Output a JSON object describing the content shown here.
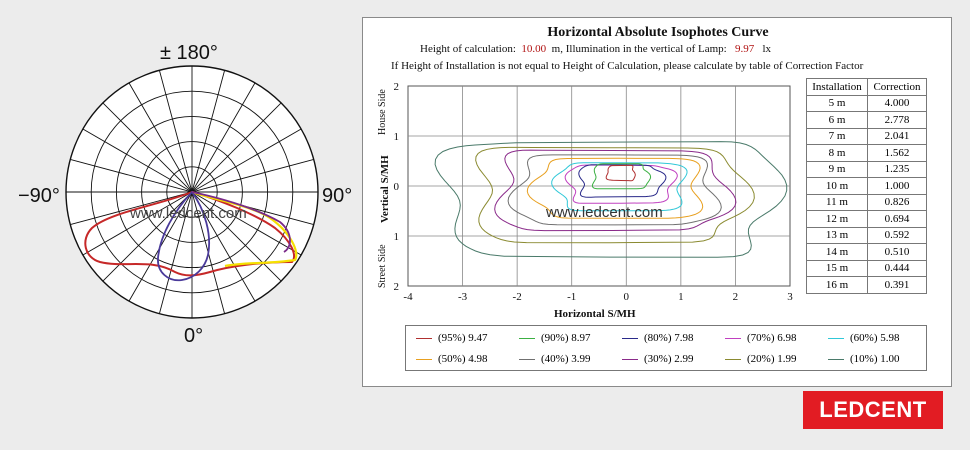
{
  "polar": {
    "top_label": "± 180°",
    "left_label": "−90°",
    "right_label": "90°",
    "bottom_label": "0°",
    "watermark": "www.ledcent.com",
    "curve_colors": [
      "#c62828",
      "#f5e000",
      "#4a3a9a",
      "#7a2a8a"
    ]
  },
  "isophote": {
    "title": "Horizontal Absolute Isophotes Curve",
    "calc_label": "Height of calculation:",
    "calc_value": "10.00",
    "calc_unit": "m, Illumination in the vertical of Lamp:",
    "lamp_value": "9.97",
    "lamp_unit": "lx",
    "note": "If Height of Installation is not equal to Height of Calculation, please calculate by table of Correction Factor",
    "y_axis_label": "Vertical S/MH",
    "house_side": "House Side",
    "street_side": "Street Side",
    "x_axis_label": "Horizontal S/MH",
    "watermark": "www.ledcent.com",
    "x_ticks": [
      "-4",
      "-3",
      "-2",
      "-1",
      "0",
      "1",
      "2",
      "3"
    ],
    "y_ticks": [
      "2",
      "1",
      "0",
      "1",
      "2"
    ]
  },
  "correction_table": {
    "headers": [
      "Installation",
      "Correction"
    ],
    "rows": [
      [
        "5 m",
        "4.000"
      ],
      [
        "6 m",
        "2.778"
      ],
      [
        "7 m",
        "2.041"
      ],
      [
        "8 m",
        "1.562"
      ],
      [
        "9 m",
        "1.235"
      ],
      [
        "10 m",
        "1.000"
      ],
      [
        "11 m",
        "0.826"
      ],
      [
        "12 m",
        "0.694"
      ],
      [
        "13 m",
        "0.592"
      ],
      [
        "14 m",
        "0.510"
      ],
      [
        "15 m",
        "0.444"
      ],
      [
        "16 m",
        "0.391"
      ]
    ]
  },
  "legend": [
    {
      "label": "(95%) 9.47",
      "color": "#b03030"
    },
    {
      "label": "(90%) 8.97",
      "color": "#3cb043"
    },
    {
      "label": "(80%) 7.98",
      "color": "#2a2a8a"
    },
    {
      "label": "(70%) 6.98",
      "color": "#c040c0"
    },
    {
      "label": "(60%) 5.98",
      "color": "#30c8d8"
    },
    {
      "label": "(50%) 4.98",
      "color": "#e8a020"
    },
    {
      "label": "(40%) 3.99",
      "color": "#707070"
    },
    {
      "label": "(30%) 2.99",
      "color": "#8a2a8a"
    },
    {
      "label": "(20%) 1.99",
      "color": "#8a8a30"
    },
    {
      "label": "(10%) 1.00",
      "color": "#4a7a6a"
    }
  ],
  "chart_data": {
    "type": "line",
    "title": "Horizontal Absolute Isophotes Curve",
    "xlabel": "Horizontal S/MH",
    "ylabel": "Vertical S/MH",
    "xlim": [
      -4,
      3
    ],
    "ylim": [
      -2,
      2
    ],
    "grid": true,
    "series": [
      {
        "name": "(95%) 9.47",
        "center": [
          -0.1,
          0.25
        ],
        "rx": 0.25,
        "ry": 0.15
      },
      {
        "name": "(90%) 8.97",
        "center": [
          -0.1,
          0.18
        ],
        "rx": 0.5,
        "ry": 0.25
      },
      {
        "name": "(80%) 7.98",
        "center": [
          -0.1,
          0.1
        ],
        "rx": 0.75,
        "ry": 0.32
      },
      {
        "name": "(70%) 6.98",
        "center": [
          -0.1,
          0.05
        ],
        "rx": 0.95,
        "ry": 0.38
      },
      {
        "name": "(60%) 5.98",
        "center": [
          -0.1,
          0.0
        ],
        "rx": 1.15,
        "ry": 0.48
      },
      {
        "name": "(50%) 4.98",
        "center": [
          -0.15,
          -0.05
        ],
        "rx": 1.5,
        "ry": 0.6
      },
      {
        "name": "(40%) 3.99",
        "center": [
          -0.2,
          -0.1
        ],
        "rx": 1.8,
        "ry": 0.7
      },
      {
        "name": "(30%) 2.99",
        "center": [
          -0.25,
          -0.1
        ],
        "rx": 2.05,
        "ry": 0.8
      },
      {
        "name": "(20%) 1.99",
        "center": [
          -0.3,
          -0.15
        ],
        "rx": 2.4,
        "ry": 0.95
      },
      {
        "name": "(10%) 1.00",
        "center": [
          -0.3,
          -0.2
        ],
        "rx": 3.0,
        "ry": 1.15
      }
    ]
  }
}
